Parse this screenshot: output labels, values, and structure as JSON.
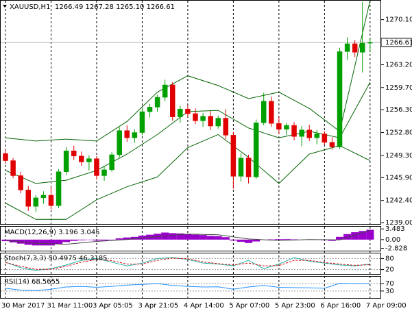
{
  "chart_data": [
    {
      "type": "candlestick",
      "title": "XAUUSD,H1",
      "subtitle": "1266.49 1267.28 1265.10 1266.61",
      "categories": [
        "30 Mar 2017",
        null,
        null,
        null,
        null,
        null,
        "31 Mar 11:00",
        null,
        null,
        null,
        null,
        null,
        "3 Apr 05:05",
        null,
        null,
        null,
        null,
        null,
        "3 Apr 21:05",
        null,
        null,
        null,
        null,
        null,
        "4 Apr 14:00",
        null,
        null,
        null,
        null,
        null,
        "5 Apr 07:00",
        null,
        null,
        null,
        null,
        null,
        "5 Apr 23:00",
        null,
        null,
        null,
        null,
        null,
        "6 Apr 16:00",
        null,
        null,
        null,
        null,
        null,
        "7 Apr 09:00"
      ],
      "candles": [
        [
          1249.6,
          1250.2,
          1248.0,
          1248.5
        ],
        [
          1248.5,
          1248.9,
          1245.8,
          1246.2
        ],
        [
          1246.2,
          1246.8,
          1243.5,
          1244.0
        ],
        [
          1244.0,
          1244.6,
          1240.8,
          1241.5
        ],
        [
          1241.5,
          1243.2,
          1240.6,
          1242.8
        ],
        [
          1242.8,
          1243.8,
          1241.9,
          1243.2
        ],
        [
          1243.2,
          1244.5,
          1241.0,
          1241.6
        ],
        [
          1241.6,
          1247.2,
          1241.2,
          1246.8
        ],
        [
          1246.8,
          1250.6,
          1246.3,
          1250.0
        ],
        [
          1250.0,
          1250.8,
          1248.6,
          1249.2
        ],
        [
          1249.2,
          1249.9,
          1247.7,
          1248.3
        ],
        [
          1248.3,
          1249.3,
          1247.0,
          1248.8
        ],
        [
          1248.8,
          1249.2,
          1245.6,
          1246.2
        ],
        [
          1246.2,
          1247.6,
          1245.4,
          1247.1
        ],
        [
          1247.1,
          1249.8,
          1246.8,
          1249.4
        ],
        [
          1249.4,
          1253.6,
          1249.0,
          1253.1
        ],
        [
          1253.1,
          1253.9,
          1251.4,
          1252.0
        ],
        [
          1252.0,
          1253.3,
          1251.2,
          1252.8
        ],
        [
          1252.8,
          1256.6,
          1252.4,
          1256.0
        ],
        [
          1256.0,
          1257.2,
          1255.1,
          1256.7
        ],
        [
          1256.7,
          1258.6,
          1256.0,
          1258.2
        ],
        [
          1258.2,
          1260.9,
          1257.6,
          1260.1
        ],
        [
          1260.1,
          1260.5,
          1254.6,
          1255.2
        ],
        [
          1255.2,
          1256.9,
          1254.3,
          1256.4
        ],
        [
          1256.4,
          1257.0,
          1255.2,
          1255.7
        ],
        [
          1255.7,
          1256.5,
          1254.1,
          1254.6
        ],
        [
          1254.6,
          1255.8,
          1253.7,
          1255.3
        ],
        [
          1255.3,
          1256.1,
          1253.2,
          1253.8
        ],
        [
          1253.8,
          1255.4,
          1253.4,
          1255.0
        ],
        [
          1255.0,
          1256.4,
          1251.8,
          1252.4
        ],
        [
          1252.4,
          1252.9,
          1244.2,
          1246.1
        ],
        [
          1246.1,
          1249.6,
          1245.3,
          1248.9
        ],
        [
          1248.9,
          1249.4,
          1245.0,
          1246.0
        ],
        [
          1246.0,
          1254.8,
          1245.7,
          1254.3
        ],
        [
          1254.3,
          1258.9,
          1253.9,
          1257.6
        ],
        [
          1257.6,
          1258.3,
          1253.7,
          1254.2
        ],
        [
          1254.2,
          1255.2,
          1252.6,
          1253.3
        ],
        [
          1253.3,
          1254.3,
          1252.4,
          1253.9
        ],
        [
          1253.9,
          1254.4,
          1251.6,
          1252.2
        ],
        [
          1252.2,
          1253.8,
          1250.7,
          1253.2
        ],
        [
          1253.2,
          1254.0,
          1251.5,
          1252.0
        ],
        [
          1252.0,
          1253.2,
          1251.0,
          1252.6
        ],
        [
          1252.6,
          1253.0,
          1250.9,
          1251.3
        ],
        [
          1251.3,
          1252.1,
          1250.2,
          1250.6
        ],
        [
          1250.6,
          1265.8,
          1250.3,
          1265.2
        ],
        [
          1265.2,
          1267.4,
          1263.9,
          1266.4
        ],
        [
          1266.4,
          1267.0,
          1264.4,
          1265.1
        ],
        [
          1265.1,
          1272.8,
          1262.0,
          1266.49
        ],
        [
          1266.49,
          1267.28,
          1265.1,
          1266.61
        ]
      ],
      "up_color": "#00a000",
      "down_color": "#e00000",
      "band_x": [
        0,
        4,
        8,
        12,
        16,
        20,
        24,
        28,
        32,
        36,
        40,
        44,
        48
      ],
      "bands": [
        {
          "color": "#006400",
          "values": [
            1252.0,
            1251.5,
            1251.8,
            1251.5,
            1254.5,
            1259.0,
            1261.5,
            1260.0,
            1258.0,
            1259.0,
            1256.5,
            1253.0,
            1273.0
          ]
        },
        {
          "color": "#006400",
          "values": [
            1247.0,
            1245.0,
            1245.5,
            1247.0,
            1249.5,
            1252.5,
            1256.0,
            1256.2,
            1253.5,
            1252.0,
            1253.0,
            1252.0,
            1260.5
          ]
        },
        {
          "color": "#006400",
          "values": [
            1242.0,
            1239.5,
            1239.5,
            1242.5,
            1244.5,
            1246.0,
            1250.5,
            1252.5,
            1249.0,
            1245.0,
            1249.5,
            1250.8,
            1248.5
          ]
        }
      ],
      "last_price": 1266.61,
      "ylim": [
        1238.8,
        1273.0
      ],
      "yticks": [
        {
          "value": 1270.1,
          "label": "1270.10"
        },
        {
          "value": 1263.2,
          "label": "1263.20"
        },
        {
          "value": 1259.7,
          "label": "1259.70"
        },
        {
          "value": 1256.3,
          "label": "1256.30"
        },
        {
          "value": 1252.8,
          "label": "1252.80"
        },
        {
          "value": 1249.3,
          "label": "1249.30"
        },
        {
          "value": 1245.9,
          "label": "1245.90"
        },
        {
          "value": 1242.4,
          "label": "1242.40"
        },
        {
          "value": 1239.0,
          "label": "1239.00"
        }
      ]
    },
    {
      "type": "macd",
      "title": "MACD(12,26,9) 3.196 3.045",
      "color": "#9900cc",
      "values": [
        -0.5,
        -0.9,
        -1.3,
        -1.7,
        -1.9,
        -1.9,
        -1.9,
        -1.4,
        -0.8,
        -0.4,
        -0.2,
        -0.1,
        -0.3,
        -0.3,
        -0.1,
        0.4,
        0.7,
        0.9,
        1.3,
        1.6,
        1.9,
        2.3,
        2.1,
        2.0,
        1.8,
        1.6,
        1.5,
        1.2,
        1.1,
        0.8,
        -0.3,
        -0.7,
        -1.1,
        -0.6,
        0.0,
        0.1,
        0.2,
        0.2,
        0.1,
        0.0,
        0.0,
        -0.1,
        -0.2,
        -0.4,
        0.9,
        1.8,
        2.4,
        2.8,
        3.196
      ],
      "signal_x": [
        0,
        4,
        8,
        12,
        16,
        20,
        24,
        28,
        32,
        36,
        40,
        44,
        48
      ],
      "signal": {
        "color": "#444444",
        "values": [
          -0.2,
          -1.2,
          -1.5,
          -0.6,
          0.0,
          1.0,
          1.8,
          1.6,
          0.2,
          -0.3,
          0.0,
          -0.1,
          3.045
        ]
      },
      "ylim": [
        -3.6,
        4.2
      ],
      "yticks": [
        3.483,
        {
          "value": 0,
          "label": "0.00"
        },
        -2.828
      ]
    },
    {
      "type": "line",
      "title": "Stoch(7,3,3) 50.4975 46.3185",
      "x": [
        0,
        2,
        4,
        6,
        8,
        10,
        12,
        14,
        16,
        18,
        20,
        22,
        24,
        26,
        28,
        30,
        32,
        34,
        36,
        38,
        40,
        42,
        44,
        46,
        48
      ],
      "series": [
        {
          "color": "#20b2aa",
          "values": [
            60,
            30,
            15,
            25,
            45,
            70,
            80,
            60,
            40,
            55,
            80,
            85,
            75,
            55,
            50,
            40,
            70,
            25,
            50,
            85,
            65,
            55,
            45,
            40,
            50.4975
          ]
        },
        {
          "color": "#e00000",
          "values": [
            58,
            38,
            22,
            22,
            38,
            60,
            75,
            68,
            50,
            50,
            70,
            82,
            78,
            62,
            52,
            45,
            55,
            40,
            42,
            70,
            70,
            58,
            50,
            43,
            46.3185
          ]
        }
      ],
      "ylim": [
        0,
        100
      ],
      "yticks": [
        80,
        20
      ]
    },
    {
      "type": "line",
      "title": "RSI(14) 68.5655",
      "x": [
        0,
        2,
        4,
        6,
        8,
        10,
        12,
        14,
        16,
        18,
        20,
        22,
        24,
        26,
        28,
        30,
        32,
        34,
        36,
        38,
        40,
        42,
        44,
        46,
        48
      ],
      "series": [
        {
          "color": "#1e90ff",
          "values": [
            45,
            35,
            32,
            40,
            52,
            55,
            50,
            55,
            62,
            66,
            70,
            60,
            55,
            52,
            53,
            40,
            52,
            60,
            50,
            48,
            47,
            45,
            72,
            70,
            68.5655
          ]
        }
      ],
      "ylim": [
        0,
        100
      ],
      "yticks": [
        70,
        30
      ]
    }
  ]
}
